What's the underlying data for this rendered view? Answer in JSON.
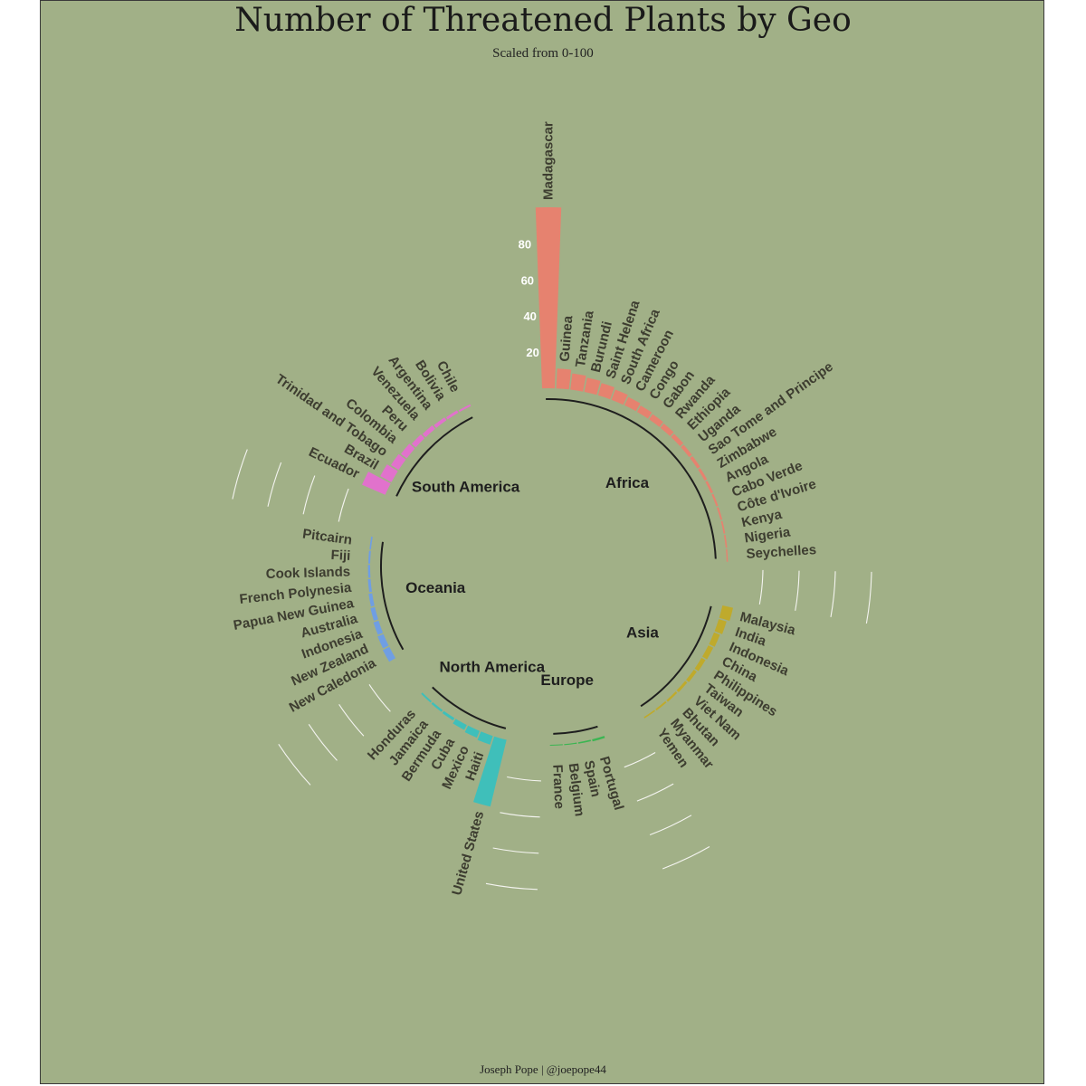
{
  "title": "Number of Threatened Plants by Geo",
  "subtitle": "Scaled from 0-100",
  "caption": "Joseph Pope | @joepope44",
  "chart_data": {
    "type": "bar",
    "polar": true,
    "title": "Number of Threatened Plants by Geo",
    "subtitle": "Scaled from 0-100",
    "y_ticks": [
      "20",
      "40",
      "60",
      "80"
    ],
    "ylim": [
      0,
      100
    ],
    "groups": [
      {
        "name": "Africa",
        "color": "#e6826f",
        "categories": [
          "Madagascar",
          "Guinea",
          "Tanzania",
          "Burundi",
          "Saint Helena",
          "South Africa",
          "Cameroon",
          "Congo",
          "Gabon",
          "Rwanda",
          "Ethiopia",
          "Uganda",
          "Sao Tome and Principe",
          "Zimbabwe",
          "Angola",
          "Cabo Verde",
          "Côte d'Ivoire",
          "Kenya",
          "Nigeria",
          "Seychelles"
        ],
        "values": [
          100,
          11,
          9,
          8,
          7,
          6,
          5,
          4,
          3.5,
          3,
          2.5,
          2,
          1.8,
          1.5,
          1.3,
          1.1,
          1,
          0.9,
          0.8,
          0.7
        ]
      },
      {
        "name": "Asia",
        "color": "#bfaa2c",
        "categories": [
          "Malaysia",
          "India",
          "Indonesia",
          "China",
          "Philippines",
          "Taiwan",
          "Viet Nam",
          "Bhutan",
          "Myanmar",
          "Yemen"
        ],
        "values": [
          6,
          4.5,
          3.5,
          3,
          2.5,
          2,
          1.5,
          1.2,
          1,
          0.8
        ]
      },
      {
        "name": "Europe",
        "color": "#3bb552",
        "categories": [
          "Portugal",
          "Spain",
          "Belgium",
          "France"
        ],
        "values": [
          1.2,
          0.8,
          0.6,
          0.5
        ]
      },
      {
        "name": "North America",
        "color": "#3fbfba",
        "categories": [
          "United States",
          "Haiti",
          "Mexico",
          "Cuba",
          "Bermuda",
          "Jamaica",
          "Honduras"
        ],
        "values": [
          38,
          5,
          4,
          3,
          1.5,
          1.2,
          1
        ]
      },
      {
        "name": "Oceania",
        "color": "#6f9ee3",
        "categories": [
          "New Caledonia",
          "New Zealand",
          "Indonesia",
          "Australia",
          "Papua New Guinea",
          "French Polynesia",
          "Cook Islands",
          "Fiji",
          "Pitcairn"
        ],
        "values": [
          4,
          3.5,
          3,
          2.5,
          2,
          1.5,
          1.2,
          1,
          0.8
        ]
      },
      {
        "name": "South America",
        "color": "#e172cc",
        "categories": [
          "Ecuador",
          "Brazil",
          "Trinidad and Tobago",
          "Colombia",
          "Peru",
          "Venezuela",
          "Argentina",
          "Bolivia",
          "Chile"
        ],
        "values": [
          14,
          7,
          5,
          4,
          3,
          2.5,
          2,
          1.5,
          1
        ]
      }
    ]
  }
}
